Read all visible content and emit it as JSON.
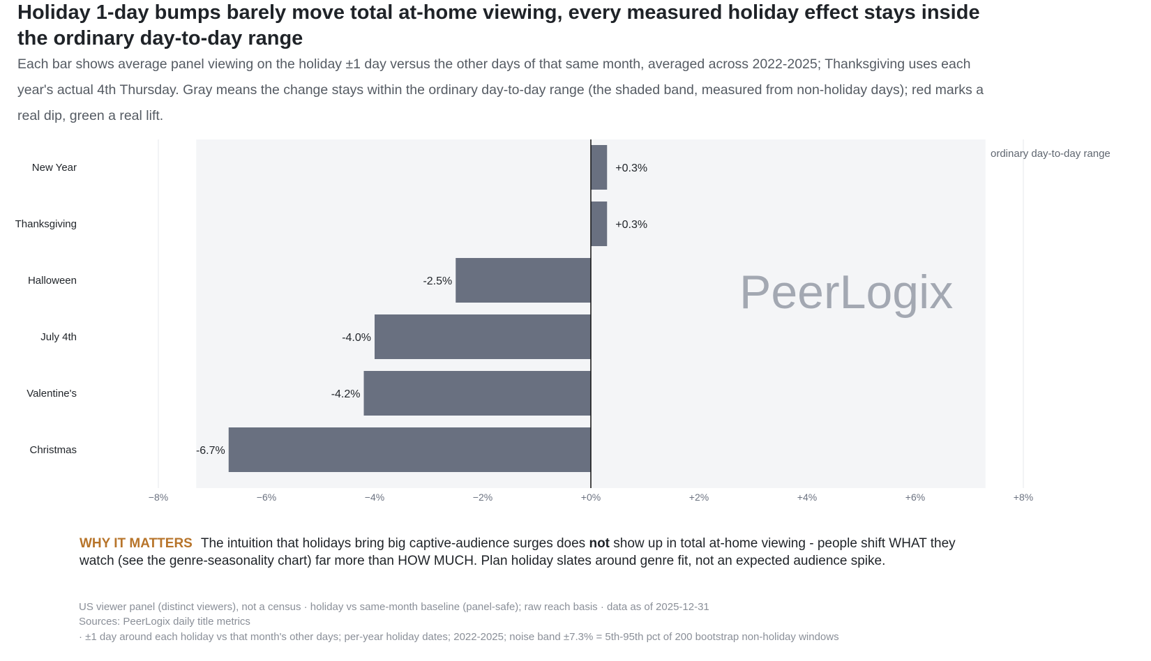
{
  "header": {
    "title": "Holiday 1-day bumps barely move total at-home viewing, every measured holiday effect stays inside the ordinary day-to-day range",
    "subtitle": "Each bar shows average panel viewing on the holiday ±1 day versus the other days of that same month, averaged across 2022-2025; Thanksgiving uses each year's actual 4th Thursday. Gray means the change stays within the ordinary day-to-day range (the shaded band, measured from non-holiday days); red marks a real dip, green a real lift."
  },
  "chart_data": {
    "type": "bar",
    "orientation": "horizontal",
    "categories": [
      "New Year",
      "Thanksgiving",
      "Halloween",
      "July 4th",
      "Valentine's",
      "Christmas"
    ],
    "values": [
      0.3,
      0.3,
      -2.5,
      -4.0,
      -4.2,
      -6.7
    ],
    "value_labels": [
      "+0.3%",
      "+0.3%",
      "-2.5%",
      "-4.0%",
      "-4.2%",
      "-6.7%"
    ],
    "xlim": [
      -8,
      8
    ],
    "x_ticks": [
      -8,
      -6,
      -4,
      -2,
      0,
      2,
      4,
      6,
      8
    ],
    "x_tick_labels": [
      "−8%",
      "−6%",
      "−4%",
      "−2%",
      "+0%",
      "+2%",
      "+4%",
      "+6%",
      "+8%"
    ],
    "noise_band": [
      -7.3,
      7.3
    ],
    "band_label": "ordinary day-to-day range",
    "grid": "vertical",
    "colors": {
      "neutral": "#697080",
      "dip": "#d1495b",
      "lift": "#2e9e5b",
      "band": "#f4f5f7",
      "grid": "#e5e7eb",
      "zero_line": "#111111"
    }
  },
  "watermark": "PeerLogix",
  "why": {
    "tag": "WHY IT MATTERS",
    "text_before": "The intuition that holidays bring big captive-audience surges does ",
    "emphasis": "not",
    "text_after": " show up in total at-home viewing - people shift WHAT they watch (see the genre-seasonality chart) far more than HOW MUCH. Plan holiday slates around genre fit, not an expected audience spike."
  },
  "footnotes": {
    "line1": "US viewer panel (distinct viewers), not a census · holiday vs same-month baseline (panel-safe); raw reach basis · data as of 2025-12-31",
    "line2": "Sources: PeerLogix daily title metrics",
    "line3": "· ±1 day around each holiday vs that month's other days; per-year holiday dates; 2022-2025; noise band ±7.3% = 5th-95th pct of 200 bootstrap non-holiday windows"
  }
}
